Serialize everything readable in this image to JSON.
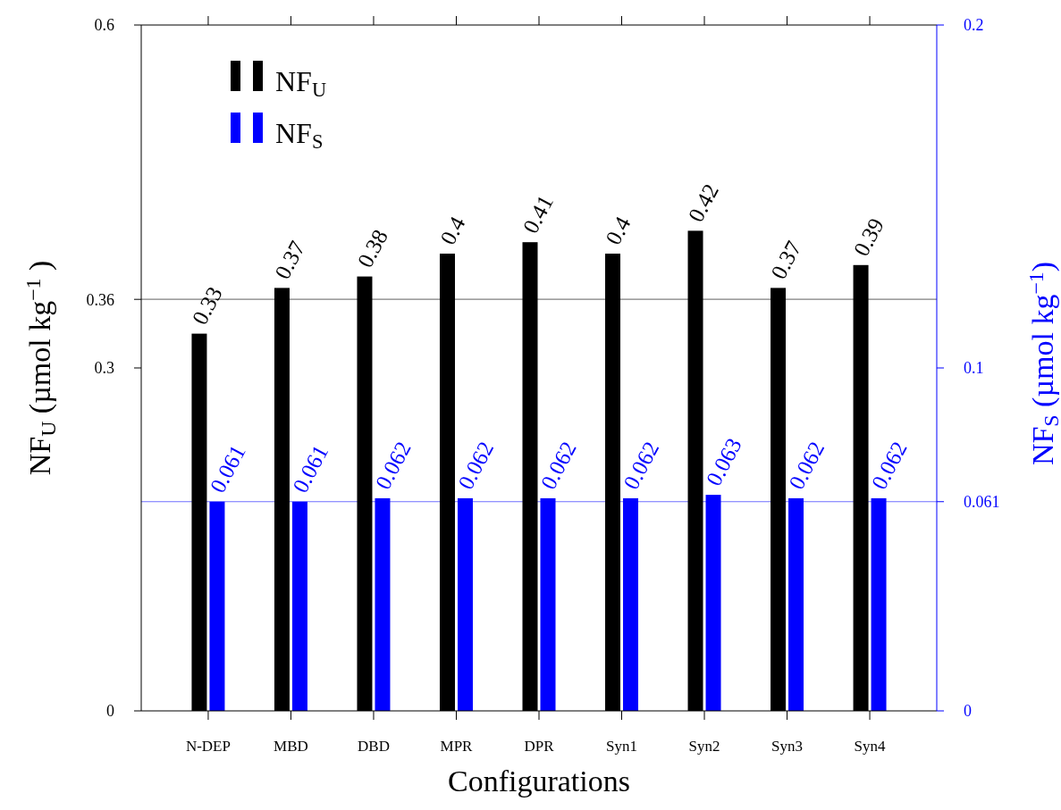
{
  "chart_data": {
    "type": "bar",
    "xlabel": "Configurations",
    "ylabel": "NF$_{U}$ (µmol kg$^{−1}$ )",
    "y2label": "NF$_{S}$ (µmol kg$^{−1}$)",
    "categories": [
      "N-DEP",
      "MBD",
      "DBD",
      "MPR",
      "DPR",
      "Syn1",
      "Syn2",
      "Syn3",
      "Syn4"
    ],
    "series": [
      {
        "name": "NF$_{U}$",
        "color": "#000000",
        "values": [
          0.33,
          0.37,
          0.38,
          0.4,
          0.41,
          0.4,
          0.42,
          0.37,
          0.39
        ]
      },
      {
        "name": "NF$_{S}$",
        "color": "#0000ff",
        "axis": "y2",
        "values": [
          0.061,
          0.061,
          0.062,
          0.062,
          0.062,
          0.062,
          0.063,
          0.062,
          0.062
        ]
      }
    ],
    "ylim": [
      0,
      0.6
    ],
    "yticks": [
      0,
      0.3,
      0.36,
      0.6
    ],
    "y2lim": [
      0,
      0.2
    ],
    "y2ticks": [
      0,
      0.061,
      0.1,
      0.2
    ],
    "ref_lines": [
      {
        "axis": "y",
        "value": 0.36,
        "color": "#7f7f7f"
      },
      {
        "axis": "y2",
        "value": 0.061,
        "color": "#6f6fff"
      }
    ],
    "data_labels": true,
    "legend": "top left"
  }
}
